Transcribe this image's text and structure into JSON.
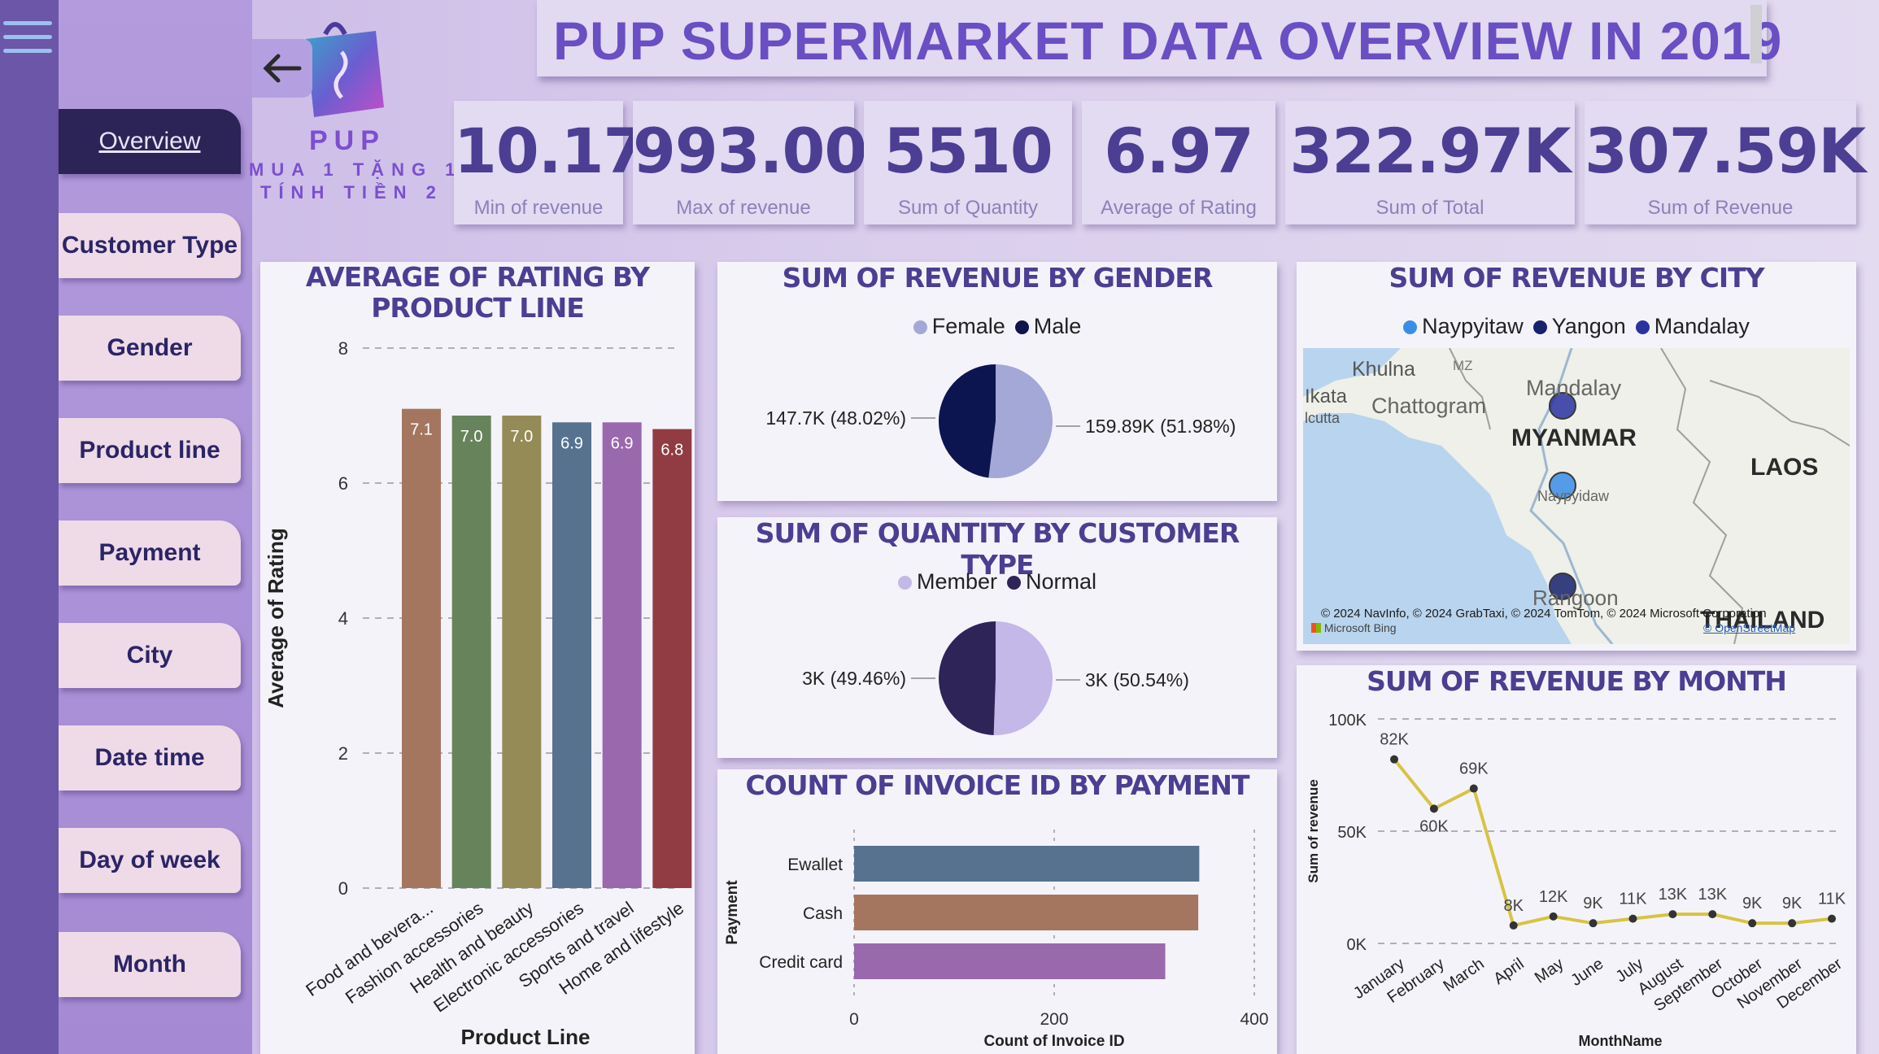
{
  "header": {
    "title": "PUP SUPERMARKET DATA OVERVIEW IN 2019",
    "brand": {
      "name": "PUP",
      "tagline_1": "MUA 1 TẶNG 1",
      "tagline_2": "TÍNH TIỀN 2"
    }
  },
  "nav": {
    "items": [
      {
        "label": "Overview",
        "active": true
      },
      {
        "label": "Customer Type"
      },
      {
        "label": "Gender"
      },
      {
        "label": "Product line"
      },
      {
        "label": "Payment"
      },
      {
        "label": "City"
      },
      {
        "label": "Date time"
      },
      {
        "label": "Day of week"
      },
      {
        "label": "Month"
      }
    ]
  },
  "kpis": [
    {
      "value": "10.17",
      "label": "Min of revenue"
    },
    {
      "value": "993.00",
      "label": "Max of revenue"
    },
    {
      "value": "5510",
      "label": "Sum of Quantity"
    },
    {
      "value": "6.97",
      "label": "Average of Rating"
    },
    {
      "value": "322.97K",
      "label": "Sum of Total"
    },
    {
      "value": "307.59K",
      "label": "Sum of Revenue"
    }
  ],
  "colors": {
    "accent": "#6a4ec3",
    "kpi_value": "#4b3e93",
    "female": "#a3a8d6",
    "male": "#0c1550",
    "member": "#c4b8e8",
    "normal": "#2f2458",
    "naypyitaw": "#3b8ee8",
    "yangon": "#16226e",
    "mandalay": "#2a33a0"
  },
  "chart_data": [
    {
      "type": "bar",
      "title": "AVERAGE OF RATING BY PRODUCT LINE",
      "xlabel": "Product Line",
      "ylabel": "Average of Rating",
      "ylim": [
        0,
        8
      ],
      "yticks": [
        "0",
        "2",
        "4",
        "6",
        "8"
      ],
      "categories": [
        "Food and bevera...",
        "Fashion accessories",
        "Health and beauty",
        "Electronic accessories",
        "Sports and travel",
        "Home and lifestyle"
      ],
      "values": [
        7.1,
        7.0,
        7.0,
        6.9,
        6.9,
        6.8
      ],
      "data_labels": [
        "7.1",
        "7.0",
        "7.0",
        "6.9",
        "6.9",
        "6.8"
      ],
      "bar_colors": [
        "#a47660",
        "#67835c",
        "#958b57",
        "#56728f",
        "#9a68ac",
        "#913c42"
      ],
      "grid": true
    },
    {
      "type": "pie",
      "title": "SUM OF REVENUE BY GENDER",
      "legend": [
        "Female",
        "Male"
      ],
      "values": [
        159.89,
        147.7
      ],
      "data_labels": [
        "159.89K (51.98%)",
        "147.7K (48.02%)"
      ],
      "colors": [
        "#a3a8d6",
        "#0c1550"
      ]
    },
    {
      "type": "pie",
      "title": "SUM OF QUANTITY BY CUSTOMER TYPE",
      "legend": [
        "Member",
        "Normal"
      ],
      "values": [
        50.54,
        49.46
      ],
      "data_labels": [
        "3K (50.54%)",
        "3K (49.46%)"
      ],
      "colors": [
        "#c4b8e8",
        "#2f2458"
      ]
    },
    {
      "type": "bar",
      "orientation": "horizontal",
      "title": "COUNT OF INVOICE ID BY PAYMENT",
      "xlabel": "Count of Invoice ID",
      "ylabel": "Payment",
      "xlim": [
        0,
        400
      ],
      "xticks": [
        "0",
        "200",
        "400"
      ],
      "categories": [
        "Ewallet",
        "Cash",
        "Credit card"
      ],
      "values": [
        345,
        344,
        311
      ],
      "bar_colors": [
        "#56728f",
        "#a47660",
        "#9a68ac"
      ]
    },
    {
      "type": "line",
      "title": "SUM OF REVENUE BY MONTH",
      "xlabel": "MonthName",
      "ylabel": "Sum of revenue",
      "ylim": [
        0,
        100
      ],
      "yticks": [
        "0K",
        "50K",
        "100K"
      ],
      "categories": [
        "January",
        "February",
        "March",
        "April",
        "May",
        "June",
        "July",
        "August",
        "September",
        "October",
        "November",
        "December"
      ],
      "values": [
        82,
        60,
        69,
        8,
        12,
        9,
        11,
        13,
        13,
        9,
        9,
        11
      ],
      "data_labels": [
        "82K",
        "60K",
        "69K",
        "8K",
        "12K",
        "9K",
        "11K",
        "13K",
        "13K",
        "9K",
        "9K",
        "11K"
      ],
      "color": "#d6c443"
    }
  ],
  "map": {
    "title": "SUM OF REVENUE BY CITY",
    "legend": [
      "Naypyitaw",
      "Yangon",
      "Mandalay"
    ],
    "labels": [
      "Khulna",
      "Chattogram",
      "Ikata",
      "lcutta",
      "MZ",
      "Mandalay",
      "MYANMAR",
      "LAOS",
      "Naypyidaw",
      "Rangoon",
      "THAILAND"
    ],
    "attribution": "© 2024 NavInfo, © 2024 GrabTaxi, © 2024 TomTom, © 2024 Microsoft Corporation",
    "osm": "© OpenStreetMap",
    "bing": "Microsoft Bing"
  }
}
